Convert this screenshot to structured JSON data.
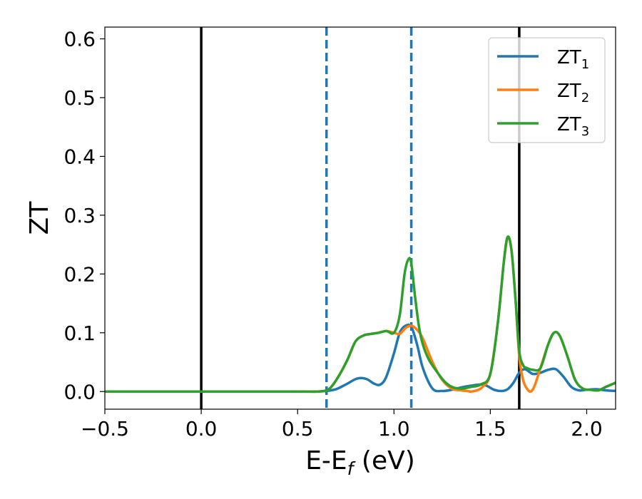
{
  "chart_data": {
    "type": "line",
    "xlabel": {
      "main": "E-E",
      "sub": "f",
      "tail": " (eV)"
    },
    "ylabel": "ZT",
    "xlim": [
      -0.5,
      2.15
    ],
    "ylim": [
      -0.03,
      0.62
    ],
    "x_ticks": [
      -0.5,
      0.0,
      0.5,
      1.0,
      1.5,
      2.0
    ],
    "x_tick_labels": [
      "−0.5",
      "0.0",
      "0.5",
      "1.0",
      "1.5",
      "2.0"
    ],
    "y_ticks": [
      0.0,
      0.1,
      0.2,
      0.3,
      0.4,
      0.5,
      0.6
    ],
    "y_tick_labels": [
      "0.0",
      "0.1",
      "0.2",
      "0.3",
      "0.4",
      "0.5",
      "0.6"
    ],
    "grid": false,
    "legend_position": "top-right",
    "reference_lines": [
      {
        "x": 0.0,
        "style": "solid",
        "color": "#000000"
      },
      {
        "x": 1.65,
        "style": "solid",
        "color": "#000000"
      },
      {
        "x": 0.65,
        "style": "dashed",
        "color": "#1f77b4"
      },
      {
        "x": 1.09,
        "style": "dashed",
        "color": "#1f77b4"
      }
    ],
    "series": [
      {
        "name": "ZT",
        "sub": "1",
        "color": "#1f77b4",
        "x": [
          -0.5,
          0.0,
          0.5,
          0.6,
          0.65,
          0.7,
          0.75,
          0.8,
          0.83,
          0.86,
          0.9,
          0.93,
          0.96,
          1.0,
          1.03,
          1.06,
          1.09,
          1.12,
          1.15,
          1.2,
          1.25,
          1.3,
          1.35,
          1.4,
          1.45,
          1.48,
          1.52,
          1.56,
          1.59,
          1.62,
          1.65,
          1.68,
          1.72,
          1.76,
          1.8,
          1.84,
          1.88,
          1.92,
          1.96,
          2.0,
          2.05,
          2.1,
          2.15
        ],
        "y": [
          0.0,
          0.0,
          0.0,
          0.0,
          0.001,
          0.004,
          0.012,
          0.021,
          0.023,
          0.021,
          0.013,
          0.012,
          0.025,
          0.065,
          0.1,
          0.112,
          0.11,
          0.08,
          0.04,
          0.005,
          0.001,
          0.003,
          0.007,
          0.01,
          0.012,
          0.01,
          0.003,
          0.001,
          0.004,
          0.015,
          0.032,
          0.038,
          0.03,
          0.032,
          0.037,
          0.038,
          0.025,
          0.008,
          0.002,
          0.003,
          0.004,
          0.002,
          0.001
        ]
      },
      {
        "name": "ZT",
        "sub": "2",
        "color": "#ff7f0e",
        "x": [
          -0.5,
          0.0,
          0.5,
          0.6,
          0.65,
          0.68,
          0.72,
          0.76,
          0.8,
          0.84,
          0.88,
          0.92,
          0.96,
          1.0,
          1.03,
          1.06,
          1.09,
          1.12,
          1.15,
          1.2,
          1.25,
          1.3,
          1.35,
          1.38,
          1.4,
          1.43,
          1.46,
          1.5,
          1.54,
          1.57,
          1.59,
          1.61,
          1.63,
          1.65,
          1.67,
          1.69,
          1.71,
          1.73,
          1.76,
          1.8,
          1.83,
          1.86,
          1.9,
          1.94,
          1.98,
          2.02,
          2.06,
          2.1,
          2.15
        ],
        "y": [
          0.0,
          0.0,
          0.0,
          0.0,
          0.002,
          0.01,
          0.03,
          0.055,
          0.085,
          0.095,
          0.098,
          0.1,
          0.103,
          0.1,
          0.098,
          0.108,
          0.112,
          0.105,
          0.09,
          0.05,
          0.02,
          0.005,
          0.002,
          0.001,
          0.0,
          0.002,
          0.008,
          0.03,
          0.12,
          0.22,
          0.263,
          0.24,
          0.16,
          0.06,
          0.02,
          0.005,
          0.0,
          0.01,
          0.04,
          0.08,
          0.1,
          0.095,
          0.06,
          0.02,
          0.005,
          0.003,
          0.002,
          0.008,
          0.015
        ]
      },
      {
        "name": "ZT",
        "sub": "3",
        "color": "#2ca02c",
        "x": [
          -0.5,
          0.0,
          0.5,
          0.6,
          0.65,
          0.68,
          0.72,
          0.76,
          0.8,
          0.84,
          0.88,
          0.92,
          0.96,
          1.0,
          1.03,
          1.055,
          1.075,
          1.09,
          1.11,
          1.13,
          1.15,
          1.18,
          1.22,
          1.26,
          1.3,
          1.35,
          1.4,
          1.45,
          1.5,
          1.54,
          1.57,
          1.59,
          1.61,
          1.63,
          1.65,
          1.67,
          1.69,
          1.72,
          1.76,
          1.8,
          1.83,
          1.86,
          1.9,
          1.94,
          1.98,
          2.02,
          2.06,
          2.1,
          2.15
        ],
        "y": [
          0.0,
          0.0,
          0.0,
          0.0,
          0.002,
          0.01,
          0.03,
          0.055,
          0.085,
          0.095,
          0.098,
          0.1,
          0.103,
          0.1,
          0.13,
          0.2,
          0.225,
          0.218,
          0.16,
          0.11,
          0.08,
          0.055,
          0.035,
          0.018,
          0.008,
          0.005,
          0.008,
          0.012,
          0.03,
          0.12,
          0.22,
          0.263,
          0.24,
          0.16,
          0.07,
          0.045,
          0.04,
          0.037,
          0.04,
          0.08,
          0.1,
          0.095,
          0.06,
          0.02,
          0.005,
          0.003,
          0.002,
          0.008,
          0.015
        ]
      }
    ]
  }
}
